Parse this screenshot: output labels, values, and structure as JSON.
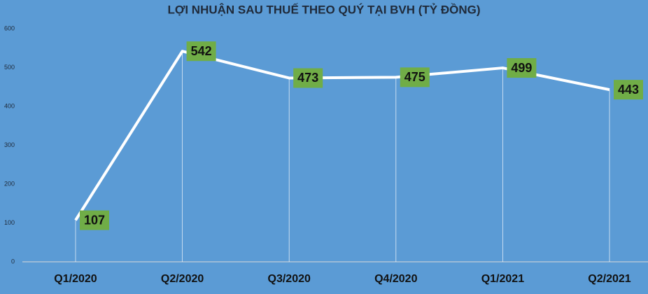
{
  "chart_data": {
    "type": "line",
    "title": "LỢI NHUẬN SAU THUẾ THEO QUÝ TẠI BVH (TỶ ĐỒNG)",
    "categories": [
      "Q1/2020",
      "Q2/2020",
      "Q3/2020",
      "Q4/2020",
      "Q1/2021",
      "Q2/2021"
    ],
    "values": [
      107,
      542,
      473,
      475,
      499,
      443
    ],
    "color": "#ffffff",
    "label_color": "#70ad47",
    "ylim": [
      0,
      600
    ],
    "yticks": [
      0,
      100,
      200,
      300,
      400,
      500,
      600
    ],
    "grid": false
  }
}
